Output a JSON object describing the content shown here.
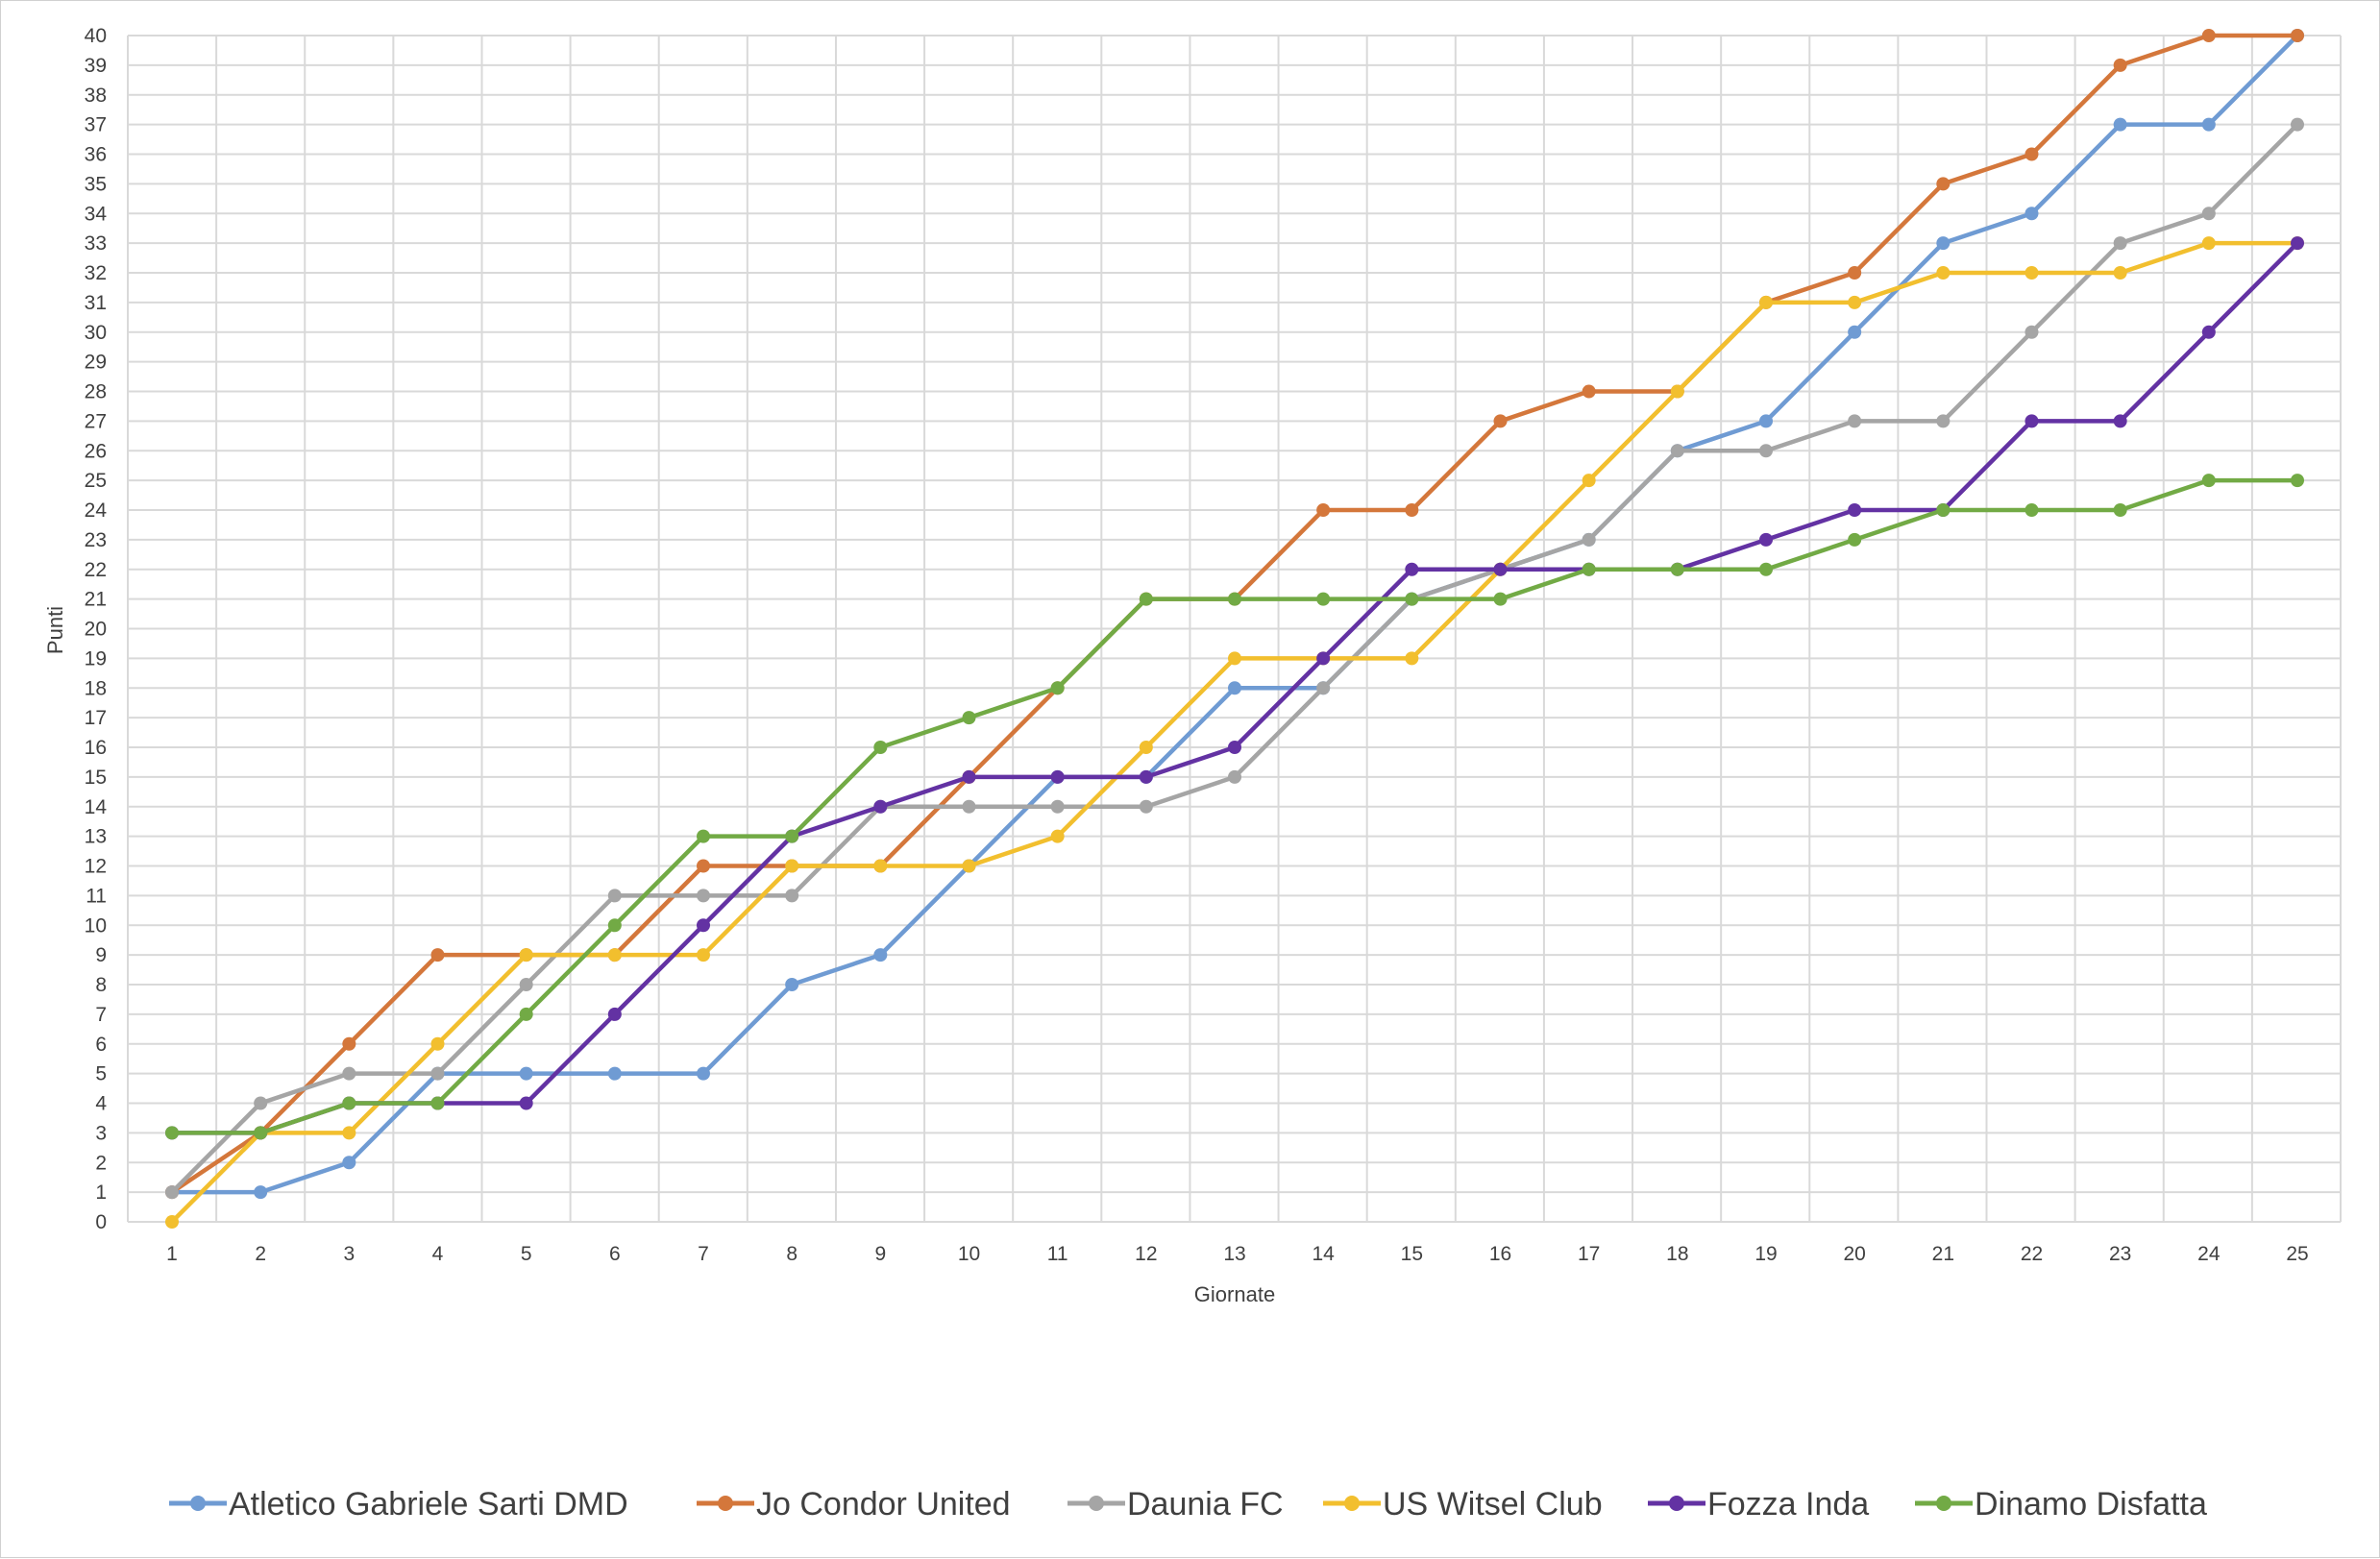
{
  "chart_data": {
    "type": "line",
    "xlabel": "Giornate",
    "ylabel": "Punti",
    "x": [
      1,
      2,
      3,
      4,
      5,
      6,
      7,
      8,
      9,
      10,
      11,
      12,
      13,
      14,
      15,
      16,
      17,
      18,
      19,
      20,
      21,
      22,
      23,
      24,
      25
    ],
    "xlim": [
      1,
      25
    ],
    "ylim": [
      0,
      40
    ],
    "yticks": [
      0,
      1,
      2,
      3,
      4,
      5,
      6,
      7,
      8,
      9,
      10,
      11,
      12,
      13,
      14,
      15,
      16,
      17,
      18,
      19,
      20,
      21,
      22,
      23,
      24,
      25,
      26,
      27,
      28,
      29,
      30,
      31,
      32,
      33,
      34,
      35,
      36,
      37,
      38,
      39,
      40
    ],
    "grid": true,
    "legend_position": "bottom",
    "series": [
      {
        "name": "Atletico Gabriele Sarti DMD",
        "color": "#6f9bd3",
        "values": [
          1,
          1,
          2,
          5,
          5,
          5,
          5,
          8,
          9,
          12,
          15,
          15,
          18,
          18,
          21,
          22,
          23,
          26,
          27,
          30,
          33,
          34,
          37,
          37,
          40
        ]
      },
      {
        "name": "Jo Condor  United",
        "color": "#d4773b",
        "values": [
          1,
          3,
          6,
          9,
          9,
          9,
          12,
          12,
          12,
          15,
          18,
          21,
          21,
          24,
          24,
          27,
          28,
          28,
          31,
          32,
          35,
          36,
          39,
          40,
          40
        ]
      },
      {
        "name": "Daunia FC",
        "color": "#a5a5a5",
        "values": [
          1,
          4,
          5,
          5,
          8,
          11,
          11,
          11,
          14,
          14,
          14,
          14,
          15,
          18,
          21,
          22,
          23,
          26,
          26,
          27,
          27,
          30,
          33,
          34,
          37
        ]
      },
      {
        "name": "US Witsel Club",
        "color": "#f2bf2e",
        "values": [
          0,
          3,
          3,
          6,
          9,
          9,
          9,
          12,
          12,
          12,
          13,
          16,
          19,
          19,
          19,
          22,
          25,
          28,
          31,
          31,
          32,
          32,
          32,
          33,
          33
        ]
      },
      {
        "name": "Fozza Inda",
        "color": "#6332a3",
        "values": [
          3,
          3,
          4,
          4,
          4,
          7,
          10,
          13,
          14,
          15,
          15,
          15,
          16,
          19,
          22,
          22,
          22,
          22,
          23,
          24,
          24,
          27,
          27,
          30,
          33
        ]
      },
      {
        "name": "Dinamo Disfatta",
        "color": "#72aa45",
        "values": [
          3,
          3,
          4,
          4,
          7,
          10,
          13,
          13,
          16,
          17,
          18,
          21,
          21,
          21,
          21,
          21,
          22,
          22,
          22,
          23,
          24,
          24,
          24,
          25,
          25
        ]
      }
    ]
  }
}
